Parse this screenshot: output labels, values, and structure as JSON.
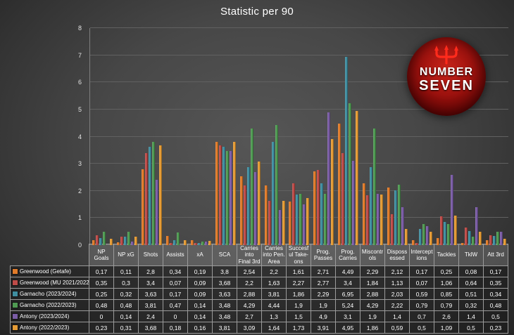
{
  "title": "Statistic per 90",
  "logo": {
    "line1": "NUMBER",
    "line2": "SEVEN"
  },
  "chart_data": {
    "type": "bar",
    "title": "Statistic per 90",
    "ylim": [
      0,
      8
    ],
    "yticks": [
      0,
      1,
      2,
      3,
      4,
      5,
      6,
      7,
      8
    ],
    "grid": true,
    "legend_position": "table-left",
    "categories": [
      "NP Goals",
      "NP xG",
      "Shots",
      "Assists",
      "xA",
      "SCA",
      "Carries into Final 3rd",
      "Carries into Pen. Area",
      "Succesful Take-ons",
      "Prog. Passes",
      "Prog. Carries",
      "Miscontrols",
      "Dispossessed",
      "Interceptions",
      "Tackles",
      "TklW",
      "Att 3rd"
    ],
    "series": [
      {
        "name": "Greenwood (Getafe)",
        "color": "#E07B2A",
        "values": [
          0.17,
          0.11,
          2.8,
          0.34,
          0.19,
          3.8,
          2.54,
          2.2,
          1.61,
          2.71,
          4.49,
          2.29,
          2.12,
          0.17,
          0.25,
          0.08,
          0.17
        ]
      },
      {
        "name": "Greenwood (MU 2021/2022)",
        "color": "#BE4B48",
        "values": [
          0.35,
          0.3,
          3.4,
          0.07,
          0.09,
          3.68,
          2.2,
          1.63,
          2.27,
          2.77,
          3.4,
          1.84,
          1.13,
          0.07,
          1.06,
          0.64,
          0.35
        ]
      },
      {
        "name": "Garnacho (2023/2024)",
        "color": "#3F8EA0",
        "values": [
          0.25,
          0.32,
          3.63,
          0.17,
          0.09,
          3.63,
          2.88,
          3.81,
          1.86,
          2.29,
          6.95,
          2.88,
          2.03,
          0.59,
          0.85,
          0.51,
          0.34
        ]
      },
      {
        "name": "Garnacho (2022/2023)",
        "color": "#4F9A52",
        "values": [
          0.48,
          0.48,
          3.81,
          0.47,
          0.14,
          3.48,
          4.29,
          4.44,
          1.9,
          1.9,
          5.24,
          4.29,
          2.22,
          0.79,
          0.79,
          0.32,
          0.48
        ]
      },
      {
        "name": "Antony (2023/2024)",
        "color": "#7A5CA5",
        "values": [
          0,
          0.14,
          2.4,
          0,
          0.14,
          3.48,
          2.7,
          1.3,
          1.5,
          4.9,
          3.1,
          1.9,
          1.4,
          0.7,
          2.6,
          1.4,
          0.5
        ]
      },
      {
        "name": "Antony (2022/2023)",
        "color": "#E49B35",
        "values": [
          0.23,
          0.31,
          3.68,
          0.18,
          0.16,
          3.81,
          3.09,
          1.64,
          1.73,
          3.91,
          4.95,
          1.86,
          0.59,
          0.5,
          1.09,
          0.5,
          0.23
        ]
      }
    ]
  }
}
